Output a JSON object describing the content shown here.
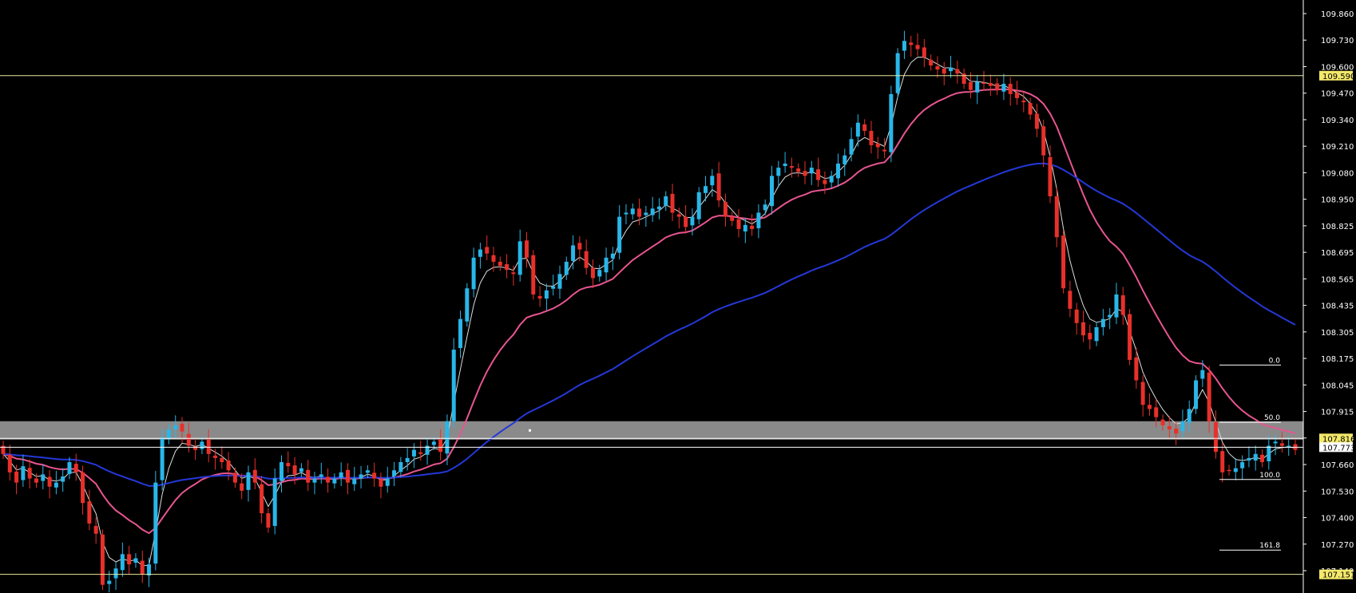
{
  "chart_data": {
    "type": "candlestick",
    "ylim": [
      107.06,
      109.96
    ],
    "y_ticks": [
      "109.860",
      "109.730",
      "109.600",
      "109.470",
      "109.340",
      "109.210",
      "109.080",
      "108.950",
      "108.825",
      "108.695",
      "108.565",
      "108.435",
      "108.305",
      "108.175",
      "108.045",
      "107.915",
      "107.790",
      "107.660",
      "107.530",
      "107.400",
      "107.270",
      "107.140"
    ],
    "price_tags": [
      {
        "label": "109.590",
        "value": 109.59,
        "line_color": "#e8e8a0",
        "tag_color": "#f3e86a"
      },
      {
        "label": "107.816",
        "value": 107.816,
        "line_color": "#ffffff",
        "tag_color": "#f3e86a"
      },
      {
        "label": "107.773",
        "value": 107.773,
        "line_color": "#ffffff",
        "tag_color": "#ffffff"
      },
      {
        "label": "107.151",
        "value": 107.151,
        "line_color": "#e8e8a0",
        "tag_color": "#f3e86a"
      }
    ],
    "zone": {
      "top": 107.9,
      "bottom": 107.81,
      "color": "#8a8a8a"
    },
    "fibonacci": [
      {
        "label": "0.0",
        "value": 108.175
      },
      {
        "label": "50.0",
        "value": 107.895
      },
      {
        "label": "100.0",
        "value": 107.615
      },
      {
        "label": "161.8",
        "value": 107.27
      }
    ],
    "colors": {
      "up": "#29b6e8",
      "down": "#e8302a",
      "ma_fast": "#dcdcdc",
      "ma_mid": "#e8558f",
      "ma_slow": "#2438d8"
    },
    "closes": [
      107.74,
      107.65,
      107.6,
      107.68,
      107.62,
      107.6,
      107.64,
      107.58,
      107.6,
      107.63,
      107.7,
      107.65,
      107.5,
      107.4,
      107.35,
      107.1,
      107.12,
      107.18,
      107.25,
      107.2,
      107.23,
      107.15,
      107.2,
      107.6,
      107.82,
      107.86,
      107.88,
      107.85,
      107.78,
      107.76,
      107.8,
      107.74,
      107.72,
      107.7,
      107.66,
      107.6,
      107.56,
      107.65,
      107.6,
      107.45,
      107.38,
      107.62,
      107.7,
      107.68,
      107.64,
      107.67,
      107.6,
      107.62,
      107.64,
      107.6,
      107.62,
      107.65,
      107.6,
      107.62,
      107.64,
      107.66,
      107.62,
      107.58,
      107.62,
      107.66,
      107.7,
      107.72,
      107.76,
      107.74,
      107.78,
      107.8,
      107.75,
      107.9,
      108.25,
      108.4,
      108.55,
      108.7,
      108.74,
      108.72,
      108.68,
      108.66,
      108.64,
      108.62,
      108.78,
      108.7,
      108.52,
      108.5,
      108.54,
      108.56,
      108.62,
      108.68,
      108.76,
      108.74,
      108.65,
      108.6,
      108.64,
      108.7,
      108.72,
      108.9,
      108.92,
      108.94,
      108.9,
      108.92,
      108.94,
      108.95,
      109.0,
      108.92,
      108.9,
      108.85,
      108.9,
      109.02,
      109.05,
      109.1,
      108.98,
      108.9,
      108.88,
      108.84,
      108.86,
      108.84,
      108.92,
      108.96,
      109.1,
      109.14,
      109.16,
      109.14,
      109.12,
      109.1,
      109.14,
      109.08,
      109.06,
      109.1,
      109.16,
      109.2,
      109.28,
      109.36,
      109.32,
      109.25,
      109.24,
      109.22,
      109.5,
      109.7,
      109.76,
      109.74,
      109.72,
      109.68,
      109.64,
      109.62,
      109.6,
      109.63,
      109.6,
      109.55,
      109.52,
      109.56,
      109.55,
      109.54,
      109.52,
      109.55,
      109.5,
      109.48,
      109.46,
      109.4,
      109.33,
      109.2,
      109.0,
      108.8,
      108.55,
      108.45,
      108.38,
      108.32,
      108.3,
      108.36,
      108.4,
      108.42,
      108.52,
      108.42,
      108.2,
      108.1,
      107.98,
      107.96,
      107.92,
      107.88,
      107.86,
      107.84,
      107.9,
      107.96,
      108.1,
      108.15,
      107.9,
      107.75,
      107.65,
      107.66,
      107.67,
      107.7,
      107.72,
      107.74,
      107.7,
      107.78,
      107.8,
      107.78,
      107.78,
      107.76
    ]
  }
}
